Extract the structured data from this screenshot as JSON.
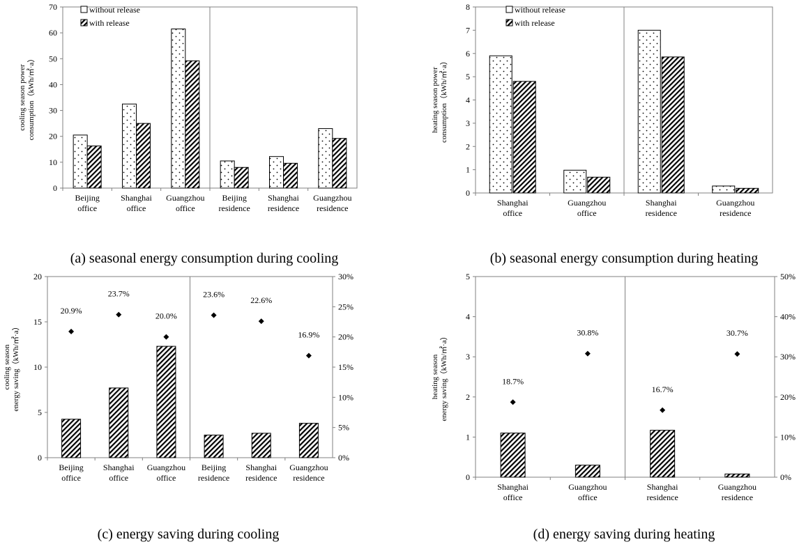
{
  "chart_data": [
    {
      "id": "a",
      "type": "bar",
      "caption": "(a) seasonal energy consumption during cooling",
      "ylabel_lines": [
        "cooling season power",
        "consumption（kWh/㎡·a）"
      ],
      "ylim": [
        0,
        70
      ],
      "yticks": [
        0,
        10,
        20,
        30,
        40,
        50,
        60,
        70
      ],
      "categories": [
        [
          "Beijing",
          "office"
        ],
        [
          "Shanghai",
          "office"
        ],
        [
          "Guangzhou",
          "office"
        ],
        [
          "Beijing",
          "residence"
        ],
        [
          "Shanghai",
          "residence"
        ],
        [
          "Guangzhou",
          "residence"
        ]
      ],
      "series": [
        {
          "name": "without release",
          "pattern": "dots",
          "values": [
            20.5,
            32.5,
            61.5,
            10.5,
            12.2,
            23.0
          ]
        },
        {
          "name": "with release",
          "pattern": "hatch",
          "values": [
            16.3,
            25.0,
            49.2,
            8.0,
            9.6,
            19.2
          ]
        }
      ],
      "separator_after": 3
    },
    {
      "id": "b",
      "type": "bar",
      "caption": "(b) seasonal energy consumption during heating",
      "ylabel_lines": [
        "heating season power",
        "consumption（kWh/㎡·a）"
      ],
      "ylim": [
        0,
        8
      ],
      "yticks": [
        0,
        1,
        2,
        3,
        4,
        5,
        6,
        7,
        8
      ],
      "categories": [
        [
          "Shanghai",
          "office"
        ],
        [
          "Guangzhou",
          "office"
        ],
        [
          "Shanghai",
          "residence"
        ],
        [
          "Guangzhou",
          "residence"
        ]
      ],
      "series": [
        {
          "name": "without release",
          "pattern": "dots",
          "values": [
            5.9,
            0.98,
            7.0,
            0.3
          ]
        },
        {
          "name": "with release",
          "pattern": "hatch",
          "values": [
            4.8,
            0.68,
            5.85,
            0.2
          ]
        }
      ],
      "separator_after": 2
    },
    {
      "id": "c",
      "type": "bar",
      "caption": "(c) energy saving during cooling",
      "ylabel_lines": [
        "cooling season",
        "energy saving（kWh/㎡·a）"
      ],
      "ylim": [
        0,
        20
      ],
      "yticks": [
        0,
        5,
        10,
        15,
        20
      ],
      "y2lim": [
        0,
        30
      ],
      "y2ticks": [
        "0%",
        "5%",
        "10%",
        "15%",
        "20%",
        "25%",
        "30%"
      ],
      "categories": [
        [
          "Beijing",
          "office"
        ],
        [
          "Shanghai",
          "office"
        ],
        [
          "Guangzhou",
          "office"
        ],
        [
          "Beijing",
          "residence"
        ],
        [
          "Shanghai",
          "residence"
        ],
        [
          "Guangzhou",
          "residence"
        ]
      ],
      "series": [
        {
          "name": "",
          "pattern": "hatch",
          "values": [
            4.25,
            7.7,
            12.3,
            2.5,
            2.7,
            3.8
          ]
        }
      ],
      "points": [
        20.9,
        23.7,
        20.0,
        23.6,
        22.6,
        16.9
      ],
      "point_labels": [
        "20.9%",
        "23.7%",
        "20.0%",
        "23.6%",
        "22.6%",
        "16.9%"
      ],
      "separator_after": 3
    },
    {
      "id": "d",
      "type": "bar",
      "caption": "(d) energy saving during heating",
      "ylabel_lines": [
        "heating season",
        "energy saving（kWh/㎡·a）"
      ],
      "ylim": [
        0,
        5
      ],
      "yticks": [
        0,
        1,
        2,
        3,
        4,
        5
      ],
      "y2lim": [
        0,
        50
      ],
      "y2ticks": [
        "0%",
        "10%",
        "20%",
        "30%",
        "40%",
        "50%"
      ],
      "categories": [
        [
          "Shanghai",
          "office"
        ],
        [
          "Guangzhou",
          "office"
        ],
        [
          "Shanghai",
          "residence"
        ],
        [
          "Guangzhou",
          "residence"
        ]
      ],
      "series": [
        {
          "name": "",
          "pattern": "hatch",
          "values": [
            1.1,
            0.3,
            1.17,
            0.08
          ]
        }
      ],
      "points": [
        18.7,
        30.8,
        16.7,
        30.7
      ],
      "point_labels": [
        "18.7%",
        "30.8%",
        "16.7%",
        "30.7%"
      ],
      "separator_after": 2
    }
  ]
}
